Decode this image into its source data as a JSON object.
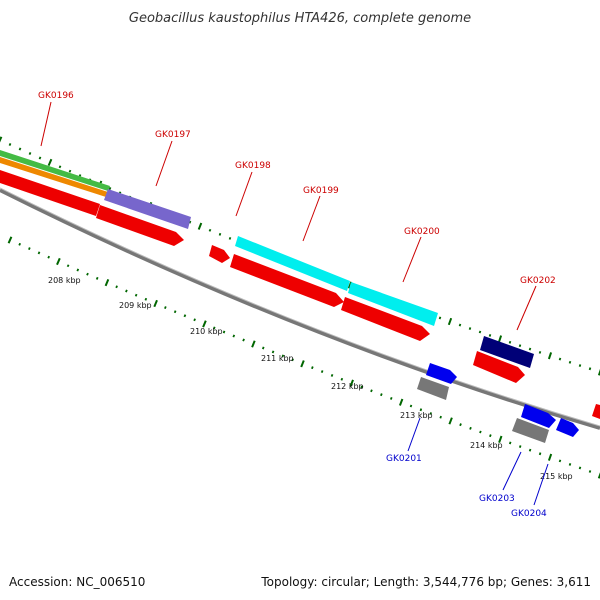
{
  "title": "Geobacillus kaustophilus HTA426, complete genome",
  "footer": {
    "accession": "Accession: NC_006510",
    "topology": "Topology: circular; Length: 3,544,776 bp; Genes: 3,611"
  },
  "colors": {
    "red": "#ee0000",
    "cyan": "#00eeee",
    "navy": "#000077",
    "blue": "#0000ee",
    "grey": "#777777",
    "purple": "#7766cc",
    "green": "#44bb44",
    "orange": "#ee8800",
    "tick": "#006600",
    "label_top": "#cc0000",
    "label_bottom": "#0000cc"
  },
  "kbp_labels": [
    "208 kbp",
    "209 kbp",
    "210 kbp",
    "211 kbp",
    "212 kbp",
    "213 kbp",
    "214 kbp",
    "215 kbp"
  ],
  "genes_top": [
    "GK0196",
    "GK0197",
    "GK0198",
    "GK0199",
    "GK0200",
    "GK0202"
  ],
  "genes_bottom": [
    "GK0201",
    "GK0203",
    "GK0204"
  ]
}
